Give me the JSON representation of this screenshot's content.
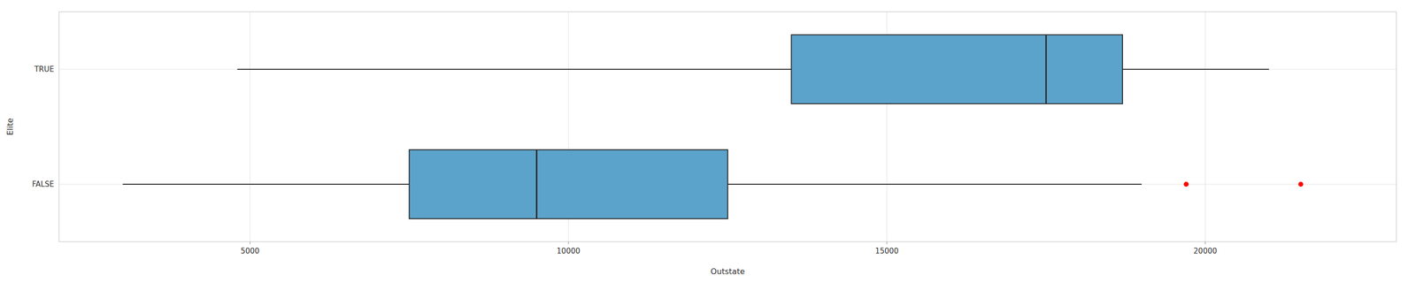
{
  "chart_data": {
    "type": "box",
    "orientation": "horizontal",
    "categories": [
      "TRUE",
      "FALSE"
    ],
    "whisker_low": [
      4800,
      3000
    ],
    "q1": [
      13500,
      7500
    ],
    "median": [
      17500,
      9500
    ],
    "q3": [
      18700,
      12500
    ],
    "whisker_high": [
      21000,
      19000
    ],
    "outliers": [
      [],
      [
        19700,
        21500
      ]
    ],
    "color": "#5BA3CB",
    "xlabel": "Outstate",
    "ylabel": "Elite",
    "xlim": [
      2000,
      23000
    ],
    "xticks": [
      5000,
      10000,
      15000,
      20000
    ],
    "grid": true
  }
}
